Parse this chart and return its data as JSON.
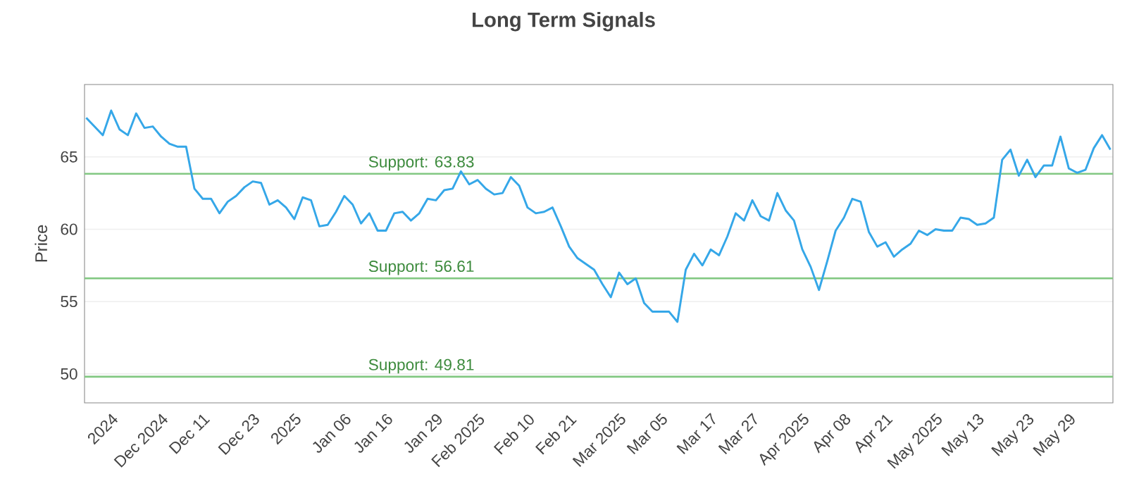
{
  "chart_data": {
    "type": "line",
    "title": "Long Term Signals",
    "ylabel": "Price",
    "categories": [
      null,
      null,
      null,
      "2024",
      null,
      null,
      null,
      null,
      null,
      "Dec 2024",
      null,
      null,
      null,
      null,
      "Dec 11",
      null,
      null,
      null,
      null,
      null,
      "Dec 23",
      null,
      null,
      null,
      null,
      "2025",
      null,
      null,
      null,
      null,
      null,
      "Jan 06",
      null,
      null,
      null,
      null,
      "Jan 16",
      null,
      null,
      null,
      null,
      null,
      "Jan 29",
      null,
      null,
      null,
      null,
      "Feb 2025",
      null,
      null,
      null,
      null,
      null,
      "Feb 10",
      null,
      null,
      null,
      null,
      "Feb 21",
      null,
      null,
      null,
      null,
      null,
      "Mar 2025",
      null,
      null,
      null,
      null,
      "Mar 05",
      null,
      null,
      null,
      null,
      null,
      "Mar 17",
      null,
      null,
      null,
      null,
      "Mar 27",
      null,
      null,
      null,
      null,
      null,
      "Apr 2025",
      null,
      null,
      null,
      null,
      "Apr 08",
      null,
      null,
      null,
      null,
      "Apr 21",
      null,
      null,
      null,
      null,
      null,
      "May 2025",
      null,
      null,
      null,
      null,
      "May 13",
      null,
      null,
      null,
      null,
      null,
      "May 23",
      null,
      null,
      null,
      null,
      "May 29",
      null,
      null,
      null,
      null,
      null
    ],
    "series": [
      {
        "color": "#35a7e8",
        "values": [
          67.7,
          67.1,
          66.5,
          68.2,
          66.9,
          66.5,
          68.0,
          67.0,
          67.1,
          66.4,
          65.9,
          65.7,
          65.7,
          62.8,
          62.1,
          62.1,
          61.1,
          61.9,
          62.3,
          62.9,
          63.3,
          63.2,
          61.7,
          62.0,
          61.5,
          60.7,
          62.2,
          62.0,
          60.2,
          60.3,
          61.2,
          62.3,
          61.7,
          60.4,
          61.1,
          59.9,
          59.9,
          61.1,
          61.2,
          60.6,
          61.1,
          62.1,
          62.0,
          62.7,
          62.8,
          64.0,
          63.1,
          63.4,
          62.8,
          62.4,
          62.5,
          63.6,
          63.0,
          61.5,
          61.1,
          61.2,
          61.5,
          60.2,
          58.8,
          58.0,
          57.6,
          57.2,
          56.2,
          55.3,
          57.0,
          56.2,
          56.6,
          54.9,
          54.3,
          54.3,
          54.3,
          53.6,
          57.2,
          58.3,
          57.5,
          58.6,
          58.2,
          59.5,
          61.1,
          60.6,
          62.0,
          60.9,
          60.6,
          62.5,
          61.3,
          60.6,
          58.6,
          57.4,
          55.8,
          57.8,
          59.9,
          60.8,
          62.1,
          61.9,
          59.8,
          58.8,
          59.1,
          58.1,
          58.6,
          59.0,
          59.9,
          59.6,
          60.0,
          59.9,
          59.9,
          60.8,
          60.7,
          60.3,
          60.4,
          60.8,
          64.8,
          65.5,
          63.7,
          64.8,
          63.6,
          64.4,
          64.4,
          66.4,
          64.2,
          63.9,
          64.1,
          65.6,
          66.5,
          65.5
        ]
      }
    ],
    "ylim": [
      48,
      70
    ],
    "yticks": [
      50,
      55,
      60,
      65
    ],
    "grid": "y",
    "marker": "none",
    "line_style": "solid",
    "ref_lines": [
      {
        "axis": "y",
        "value": 63.83,
        "label": "Support: 63.83",
        "color": "#82c882"
      },
      {
        "axis": "y",
        "value": 56.61,
        "label": "Support: 56.61",
        "color": "#82c882"
      },
      {
        "axis": "y",
        "value": 49.81,
        "label": "Support: 49.81",
        "color": "#82c882"
      }
    ]
  }
}
